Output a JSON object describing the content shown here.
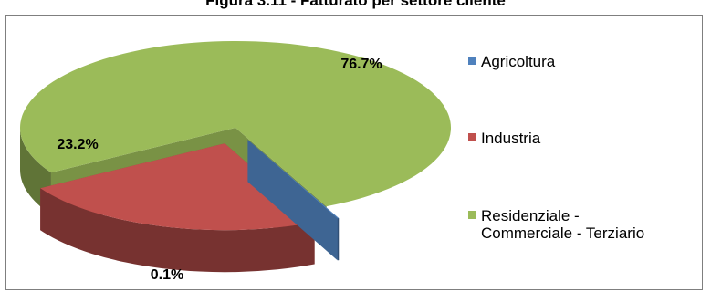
{
  "figure_title": "Figura 3.11 - Fatturato per settore cliente",
  "chart_data": {
    "type": "pie",
    "categories": [
      "Agricoltura",
      "Industria",
      "Residenziale - Commerciale - Terziario"
    ],
    "values": [
      0.1,
      23.2,
      76.7
    ],
    "value_labels": [
      "0.1%",
      "23.2%",
      "76.7%"
    ],
    "colors": [
      "#4f81bd",
      "#c0504d",
      "#9bbb59"
    ],
    "legend_lines": [
      [
        "Agricoltura"
      ],
      [
        "Industria"
      ],
      [
        "Residenziale -",
        "Commerciale - Terziario"
      ]
    ],
    "legend_position": "right",
    "style": "3d-exploded"
  }
}
